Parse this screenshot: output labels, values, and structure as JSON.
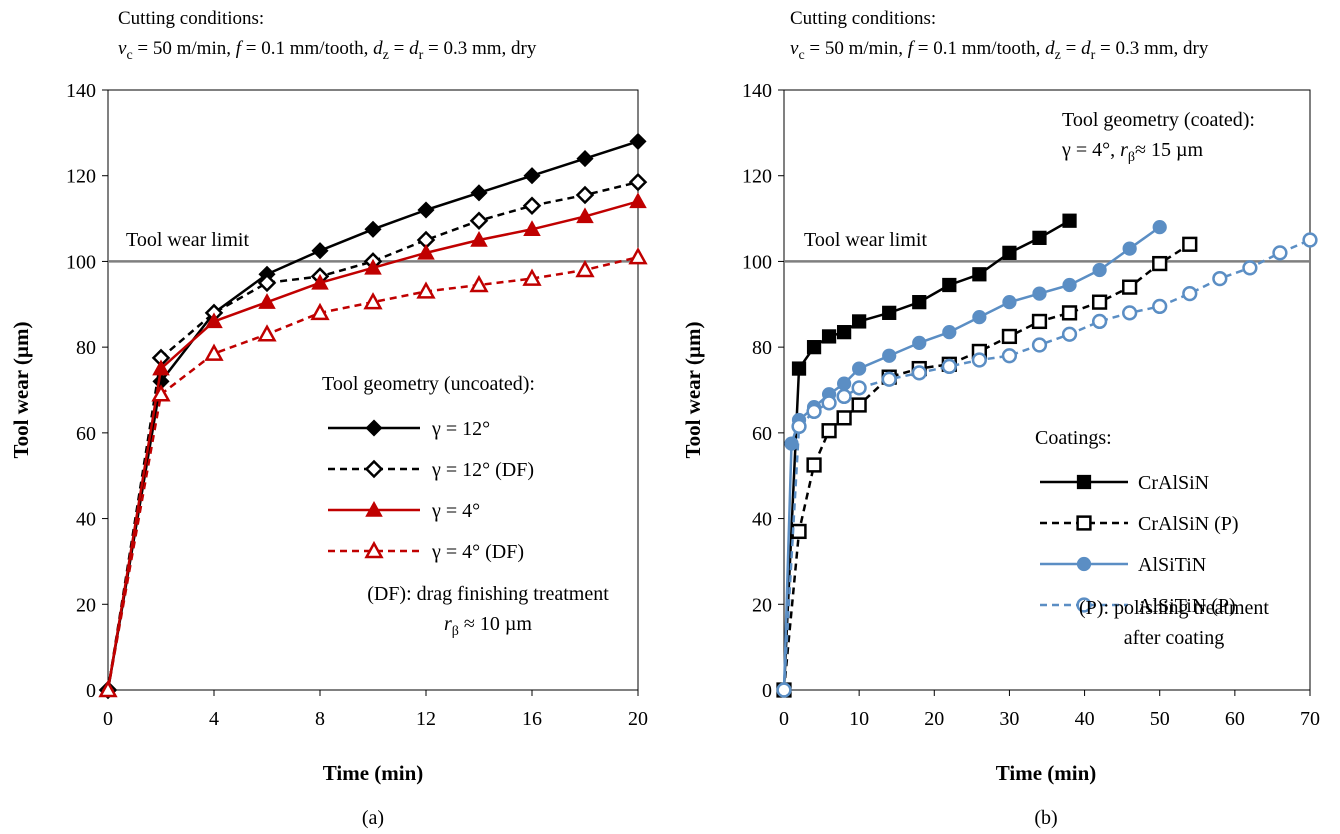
{
  "chart_data": [
    {
      "type": "line",
      "panel_label": "(a)",
      "conditions_title": "Cutting conditions:",
      "conditions": [
        {
          "t": "v",
          "style": "italic"
        },
        {
          "t": "c",
          "style": "sub"
        },
        {
          "t": " = 50 m/min, "
        },
        {
          "t": "f",
          "style": "italic"
        },
        {
          "t": " = 0.1 mm/tooth,  "
        },
        {
          "t": "d",
          "style": "italic"
        },
        {
          "t": "z",
          "style": "sub"
        },
        {
          "t": " = "
        },
        {
          "t": "d",
          "style": "italic"
        },
        {
          "t": "r",
          "style": "sub"
        },
        {
          "t": " = 0.3 mm, dry"
        }
      ],
      "xlabel": "Time (min)",
      "ylabel": "Tool wear (µm)",
      "xlim": [
        0,
        20
      ],
      "ylim": [
        0,
        140
      ],
      "xticks": [
        0,
        4,
        8,
        12,
        16,
        20
      ],
      "yticks": [
        0,
        20,
        40,
        60,
        80,
        100,
        120,
        140
      ],
      "limit_value": 100,
      "limit_label": "Tool wear limit",
      "legend_title": "Tool geometry (uncoated):",
      "legend_position": "lower-right",
      "note_lines": [
        [
          {
            "t": "(DF):  drag finishing treatment"
          }
        ],
        [
          {
            "t": "r",
            "style": "italic"
          },
          {
            "t": "β",
            "style": "sub"
          },
          {
            "t": " ≈ 10 µm"
          }
        ]
      ],
      "series": [
        {
          "name": "γ = 12°",
          "color": "#000000",
          "dash": "solid",
          "marker": "diamond",
          "filled": true,
          "x": [
            0,
            2,
            4,
            6,
            8,
            10,
            12,
            14,
            16,
            18,
            20
          ],
          "y": [
            0,
            72,
            88,
            97,
            102.5,
            107.5,
            112,
            116,
            120,
            124,
            128
          ]
        },
        {
          "name": "γ = 12° (DF)",
          "color": "#000000",
          "dash": "dashed",
          "marker": "diamond",
          "filled": false,
          "x": [
            0,
            2,
            4,
            6,
            8,
            10,
            12,
            14,
            16,
            18,
            20
          ],
          "y": [
            0,
            77.5,
            88,
            95,
            96.5,
            100,
            105,
            109.5,
            113,
            115.5,
            118.5
          ]
        },
        {
          "name": "γ = 4°",
          "color": "#c00000",
          "dash": "solid",
          "marker": "triangle",
          "filled": true,
          "x": [
            0,
            2,
            4,
            6,
            8,
            10,
            12,
            14,
            16,
            18,
            20
          ],
          "y": [
            0,
            75,
            86,
            90.5,
            95,
            98.5,
            102,
            105,
            107.5,
            110.5,
            114
          ]
        },
        {
          "name": "γ = 4° (DF)",
          "color": "#c00000",
          "dash": "dashed",
          "marker": "triangle",
          "filled": false,
          "x": [
            0,
            2,
            4,
            6,
            8,
            10,
            12,
            14,
            16,
            18,
            20
          ],
          "y": [
            0,
            69,
            78.5,
            83,
            88,
            90.5,
            93,
            94.5,
            96,
            98,
            101
          ]
        }
      ]
    },
    {
      "type": "line",
      "panel_label": "(b)",
      "conditions_title": "Cutting conditions:",
      "conditions": [
        {
          "t": "v",
          "style": "italic"
        },
        {
          "t": "c",
          "style": "sub"
        },
        {
          "t": " = 50 m/min, "
        },
        {
          "t": "f",
          "style": "italic"
        },
        {
          "t": " = 0.1 mm/tooth,  "
        },
        {
          "t": "d",
          "style": "italic"
        },
        {
          "t": "z",
          "style": "sub"
        },
        {
          "t": " = "
        },
        {
          "t": "d",
          "style": "italic"
        },
        {
          "t": "r",
          "style": "sub"
        },
        {
          "t": " = 0.3 mm, dry"
        }
      ],
      "xlabel": "Time (min)",
      "ylabel": "Tool wear (µm)",
      "xlim": [
        0,
        70
      ],
      "ylim": [
        0,
        140
      ],
      "xticks": [
        0,
        10,
        20,
        30,
        40,
        50,
        60,
        70
      ],
      "yticks": [
        0,
        20,
        40,
        60,
        80,
        100,
        120,
        140
      ],
      "limit_value": 100,
      "limit_label": "Tool wear limit",
      "geometry_lines": [
        [
          {
            "t": "Tool geometry (coated):"
          }
        ],
        [
          {
            "t": "γ = 4°, "
          },
          {
            "t": "r",
            "style": "italic"
          },
          {
            "t": "β",
            "style": "sub"
          },
          {
            "t": "≈ 15 µm"
          }
        ]
      ],
      "legend_title": "Coatings:",
      "legend_position": "lower-right",
      "note_lines": [
        [
          {
            "t": "(P):  polishing treatment"
          }
        ],
        [
          {
            "t": "after coating"
          }
        ]
      ],
      "series": [
        {
          "name": "CrAlSiN",
          "color": "#000000",
          "dash": "solid",
          "marker": "square",
          "filled": true,
          "x": [
            0,
            2,
            4,
            6,
            8,
            10,
            14,
            18,
            22,
            26,
            30,
            34,
            38
          ],
          "y": [
            0,
            75,
            80,
            82.5,
            83.5,
            86,
            88,
            90.5,
            94.5,
            97,
            102,
            105.5,
            109.5
          ]
        },
        {
          "name": "CrAlSiN  (P)",
          "color": "#000000",
          "dash": "dashed",
          "marker": "square",
          "filled": false,
          "x": [
            0,
            2,
            4,
            6,
            8,
            10,
            14,
            18,
            22,
            26,
            30,
            34,
            38,
            42,
            46,
            50,
            54
          ],
          "y": [
            0,
            37,
            52.5,
            60.5,
            63.5,
            66.5,
            73,
            75,
            76,
            79,
            82.5,
            86,
            88,
            90.5,
            94,
            99.5,
            104
          ]
        },
        {
          "name": "AlSiTiN",
          "color": "#5b8ec4",
          "dash": "solid",
          "marker": "circle",
          "filled": true,
          "x": [
            0,
            1,
            2,
            4,
            6,
            8,
            10,
            14,
            18,
            22,
            26,
            30,
            34,
            38,
            42,
            46,
            50
          ],
          "y": [
            0,
            57.5,
            63,
            66,
            69,
            71.5,
            75,
            78,
            81,
            83.5,
            87,
            90.5,
            92.5,
            94.5,
            98,
            103,
            108
          ]
        },
        {
          "name": "AlSiTiN  (P)",
          "color": "#5b8ec4",
          "dash": "dashed",
          "marker": "circle",
          "filled": false,
          "x": [
            0,
            2,
            4,
            6,
            8,
            10,
            14,
            18,
            22,
            26,
            30,
            34,
            38,
            42,
            46,
            50,
            54,
            58,
            62,
            66,
            70
          ],
          "y": [
            0,
            61.5,
            65,
            67,
            68.5,
            70.5,
            72.5,
            74,
            75.5,
            77,
            78,
            80.5,
            83,
            86,
            88,
            89.5,
            92.5,
            96,
            98.5,
            102,
            105
          ]
        }
      ]
    }
  ]
}
